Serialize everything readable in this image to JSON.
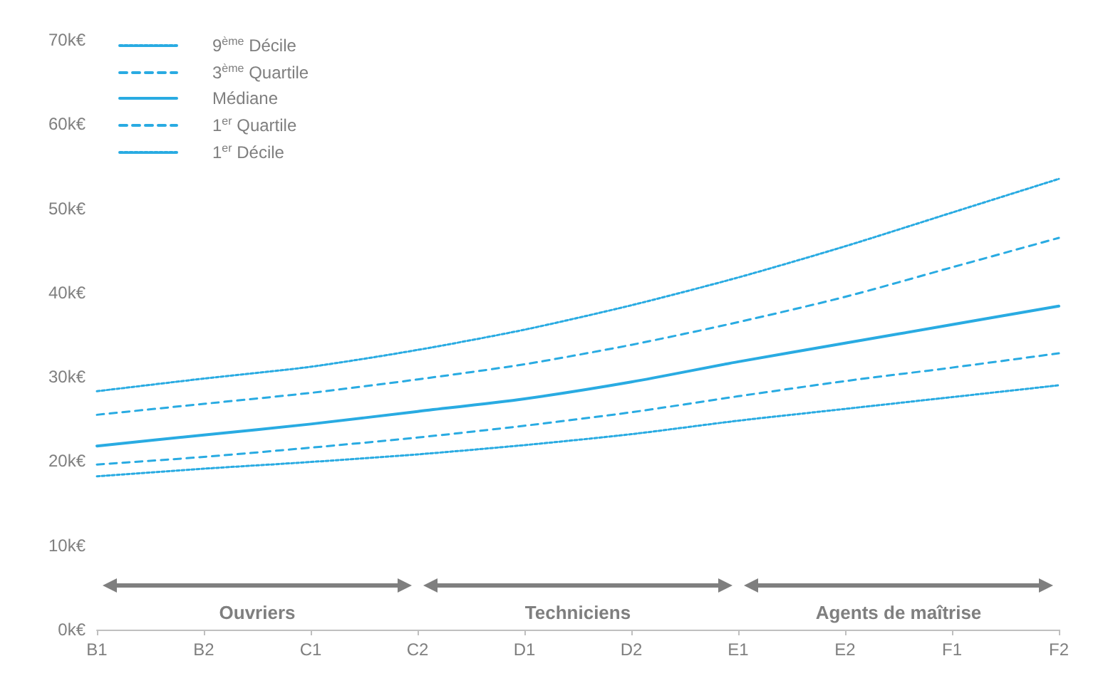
{
  "chart_data": {
    "type": "line",
    "categories": [
      "B1",
      "B2",
      "C1",
      "C2",
      "D1",
      "D2",
      "E1",
      "E2",
      "F1",
      "F2"
    ],
    "series": [
      {
        "name": "9$^{ème}$ Décile",
        "color": "#29abe2",
        "line_style": "dotted",
        "values": [
          28.3,
          29.8,
          31.2,
          33.2,
          35.6,
          38.5,
          41.8,
          45.5,
          49.5,
          53.5
        ]
      },
      {
        "name": "3$^{ème}$ Quartile",
        "color": "#29abe2",
        "line_style": "dashed",
        "values": [
          25.5,
          26.8,
          28.1,
          29.7,
          31.5,
          33.8,
          36.5,
          39.5,
          43.0,
          46.5
        ]
      },
      {
        "name": "Médiane",
        "color": "#29abe2",
        "line_style": "solid",
        "values": [
          21.8,
          23.1,
          24.4,
          25.9,
          27.4,
          29.4,
          31.8,
          34.0,
          36.2,
          38.4
        ]
      },
      {
        "name": "1$^{er}$ Quartile",
        "color": "#29abe2",
        "line_style": "dashed",
        "values": [
          19.6,
          20.5,
          21.6,
          22.8,
          24.2,
          25.8,
          27.7,
          29.5,
          31.1,
          32.8
        ]
      },
      {
        "name": "1$^{er}$ Décile",
        "color": "#29abe2",
        "line_style": "dotted",
        "values": [
          18.2,
          19.1,
          19.9,
          20.8,
          21.9,
          23.2,
          24.8,
          26.2,
          27.6,
          29.0
        ]
      }
    ],
    "ylim": [
      0,
      70
    ],
    "yticks": [
      {
        "value": 0,
        "label": "0k€"
      },
      {
        "value": 10,
        "label": "10k€"
      },
      {
        "value": 20,
        "label": "20k€"
      },
      {
        "value": 30,
        "label": "30k€"
      },
      {
        "value": 40,
        "label": "40k€"
      },
      {
        "value": 50,
        "label": "50k€"
      },
      {
        "value": 60,
        "label": "60k€"
      },
      {
        "value": 70,
        "label": "70k€"
      }
    ],
    "annotations": [
      "Ouvriers",
      "Techniciens",
      "Agents de maîtrise"
    ],
    "grid": false,
    "legend": "top left",
    "marker": "none"
  }
}
